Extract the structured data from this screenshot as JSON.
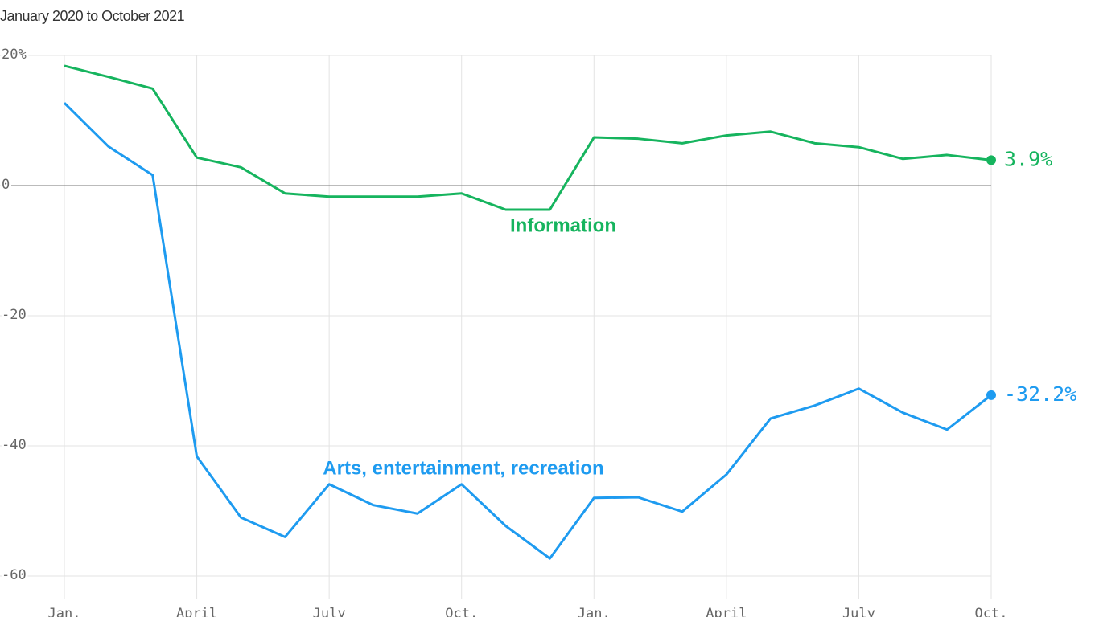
{
  "chart_data": {
    "type": "line",
    "subtitle": "January 2020 to October 2021",
    "categories": [
      "Jan.",
      null,
      null,
      "April",
      null,
      null,
      "July",
      null,
      null,
      "Oct.",
      null,
      null,
      "Jan.",
      null,
      null,
      "April",
      null,
      null,
      "July",
      null,
      null,
      "Oct."
    ],
    "series": [
      {
        "name": "Information",
        "color": "#16b45e",
        "values": [
          18.4,
          16.7,
          14.9,
          4.3,
          2.8,
          -1.2,
          -1.7,
          -1.7,
          -1.7,
          -1.2,
          -3.7,
          -3.7,
          7.4,
          7.2,
          6.5,
          7.7,
          8.3,
          6.5,
          5.9,
          4.1,
          4.7,
          3.9
        ],
        "value_labels": [
          null,
          null,
          null,
          null,
          null,
          null,
          null,
          null,
          null,
          null,
          null,
          null,
          null,
          null,
          null,
          null,
          null,
          null,
          null,
          null,
          null,
          "3.9%"
        ]
      },
      {
        "name": "Arts, entertainment, recreation",
        "color": "#1e9bf0",
        "values": [
          12.7,
          6.0,
          1.6,
          -41.6,
          -51.0,
          -54.0,
          -45.9,
          -49.1,
          -50.4,
          -45.9,
          -52.3,
          -57.3,
          -48.0,
          -47.9,
          -50.1,
          -44.4,
          -35.8,
          -33.8,
          -31.2,
          -34.9,
          -37.5,
          -32.2
        ],
        "value_labels": [
          null,
          null,
          null,
          null,
          null,
          null,
          null,
          null,
          null,
          null,
          null,
          null,
          null,
          null,
          null,
          null,
          null,
          null,
          null,
          null,
          null,
          "-32.2%"
        ]
      }
    ],
    "ylim": [
      -60,
      20
    ],
    "yticks": [
      {
        "value": 20,
        "label": "20%"
      },
      0,
      -20,
      -40,
      -60
    ],
    "grid": true
  }
}
